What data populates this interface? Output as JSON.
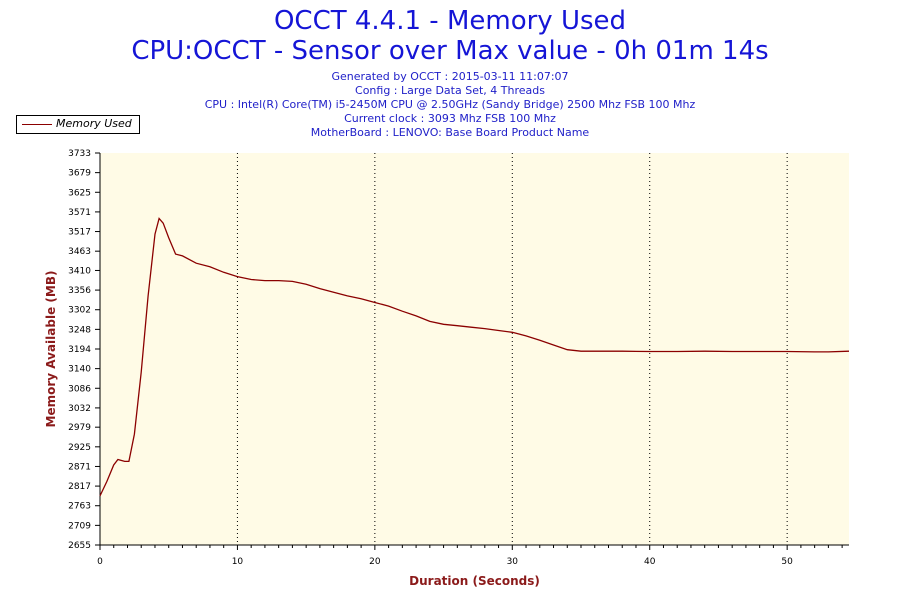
{
  "header": {
    "title": "OCCT 4.4.1 - Memory Used",
    "subtitle": "CPU:OCCT - Sensor over Max value - 0h 01m 14s",
    "info_lines": [
      "Generated by OCCT : 2015-03-11 11:07:07",
      "Config : Large Data Set, 4 Threads",
      "CPU : Intel(R) Core(TM) i5-2450M CPU @ 2.50GHz (Sandy Bridge) 2500 Mhz FSB 100 Mhz",
      "Current clock : 3093 Mhz FSB 100 Mhz",
      "MotherBoard : LENOVO: Base Board Product Name"
    ]
  },
  "legend": {
    "label": "Memory Used",
    "position": "top-left"
  },
  "colors": {
    "line": "#8b0000",
    "plot_bg": "#fffbe6",
    "title": "#1515d6",
    "info": "#1e1ec8",
    "axis_label": "#8b1a1a"
  },
  "chart_data": {
    "type": "line",
    "title": "OCCT 4.4.1 - Memory Used",
    "xlabel": "Duration (Seconds)",
    "ylabel": "Memory Available (MB)",
    "xlim": [
      0,
      54.5
    ],
    "ylim": [
      2655,
      3733
    ],
    "grid": "vertical dotted",
    "x_ticks": [
      0,
      10,
      20,
      30,
      40,
      50
    ],
    "y_ticks": [
      2655,
      2709,
      2763,
      2817,
      2871,
      2925,
      2979,
      3032,
      3086,
      3140,
      3194,
      3248,
      3302,
      3356,
      3410,
      3463,
      3517,
      3571,
      3625,
      3679,
      3733
    ],
    "series": [
      {
        "name": "Memory Used",
        "x": [
          0,
          0.5,
          1,
          1.3,
          1.8,
          2.1,
          2.5,
          3,
          3.5,
          4,
          4.3,
          4.6,
          5,
          5.5,
          6,
          7,
          8,
          9,
          10,
          11,
          12,
          13,
          14,
          15,
          16,
          17,
          18,
          19,
          20,
          21,
          22,
          23,
          24,
          25,
          26,
          27,
          28,
          29,
          30,
          31,
          32,
          33,
          34,
          35,
          36,
          38,
          40,
          42,
          44,
          46,
          48,
          50,
          52,
          53,
          54.5
        ],
        "y": [
          2790,
          2830,
          2875,
          2890,
          2885,
          2885,
          2960,
          3130,
          3340,
          3510,
          3553,
          3540,
          3500,
          3455,
          3450,
          3430,
          3420,
          3405,
          3393,
          3385,
          3382,
          3382,
          3380,
          3372,
          3360,
          3350,
          3340,
          3332,
          3322,
          3312,
          3298,
          3285,
          3270,
          3262,
          3258,
          3254,
          3250,
          3245,
          3240,
          3230,
          3218,
          3205,
          3192,
          3188,
          3188,
          3188,
          3187,
          3187,
          3188,
          3187,
          3187,
          3187,
          3186,
          3186,
          3188
        ]
      }
    ]
  }
}
